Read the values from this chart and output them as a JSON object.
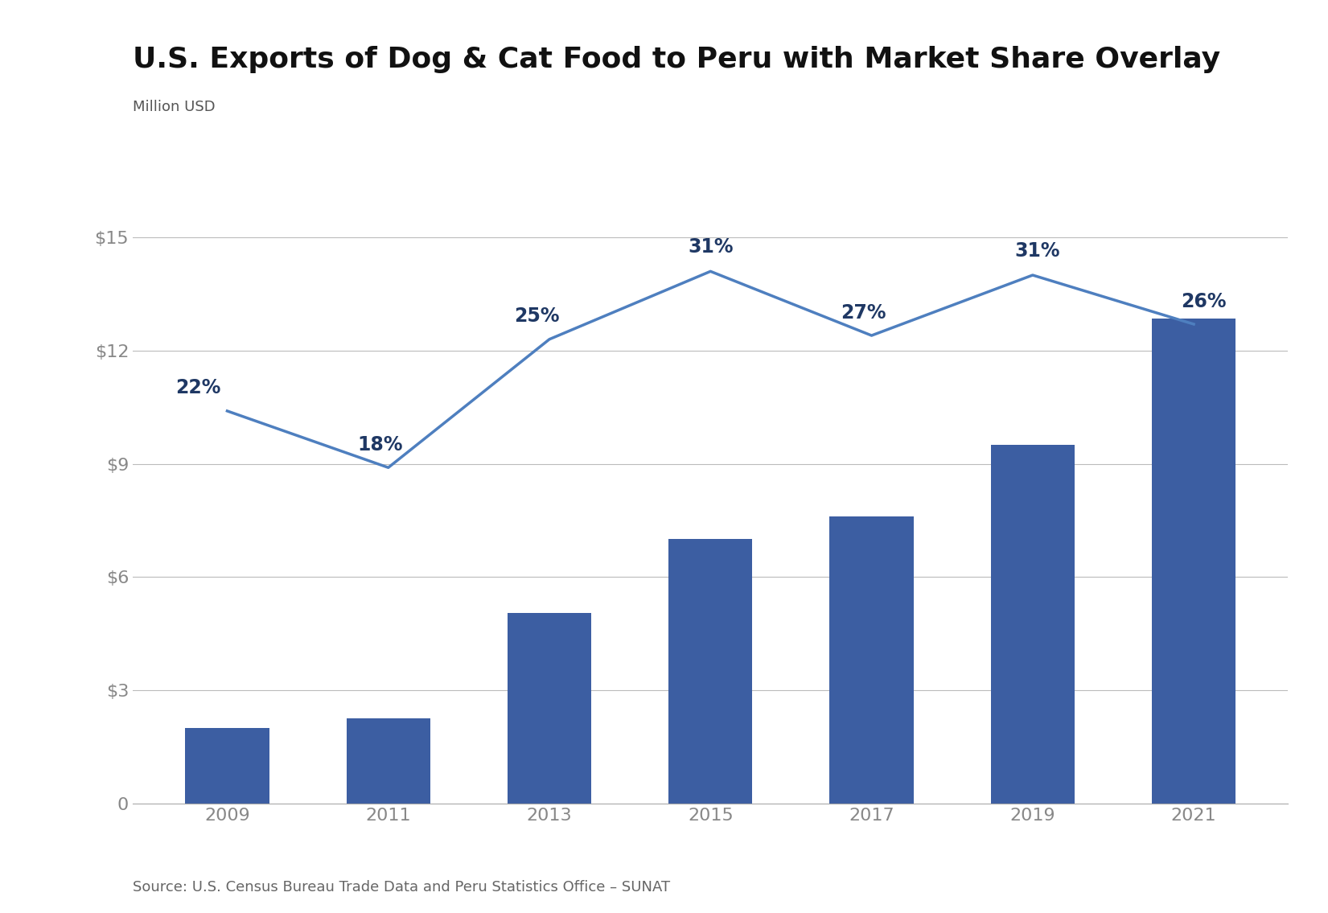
{
  "title": "U.S. Exports of Dog & Cat Food to Peru with Market Share Overlay",
  "ylabel": "Million USD",
  "source": "Source: U.S. Census Bureau Trade Data and Peru Statistics Office – SUNAT",
  "years": [
    2009,
    2011,
    2013,
    2015,
    2017,
    2019,
    2021
  ],
  "bar_values": [
    2.0,
    2.25,
    5.05,
    7.0,
    7.6,
    9.5,
    12.85
  ],
  "line_y": [
    10.4,
    8.9,
    12.3,
    14.1,
    12.4,
    14.0,
    12.7
  ],
  "market_share": [
    22,
    18,
    25,
    31,
    27,
    31,
    26
  ],
  "bar_color": "#3C5EA2",
  "line_color": "#4E7FBF",
  "pct_label_color": "#1F3864",
  "ytick_color": "#888888",
  "xtick_color": "#888888",
  "grid_color": "#BBBBBB",
  "background_color": "#FFFFFF",
  "title_color": "#111111",
  "ylabel_color": "#555555",
  "source_color": "#666666",
  "ylim": [
    0,
    15
  ],
  "yticks": [
    0,
    3,
    6,
    9,
    12,
    15
  ],
  "ytick_labels": [
    "0",
    "$3",
    "$6",
    "$9",
    "$12",
    "$15"
  ],
  "title_fontsize": 26,
  "ylabel_fontsize": 13,
  "tick_fontsize": 16,
  "source_fontsize": 13,
  "pct_label_fontsize": 17,
  "bar_width": 0.52
}
